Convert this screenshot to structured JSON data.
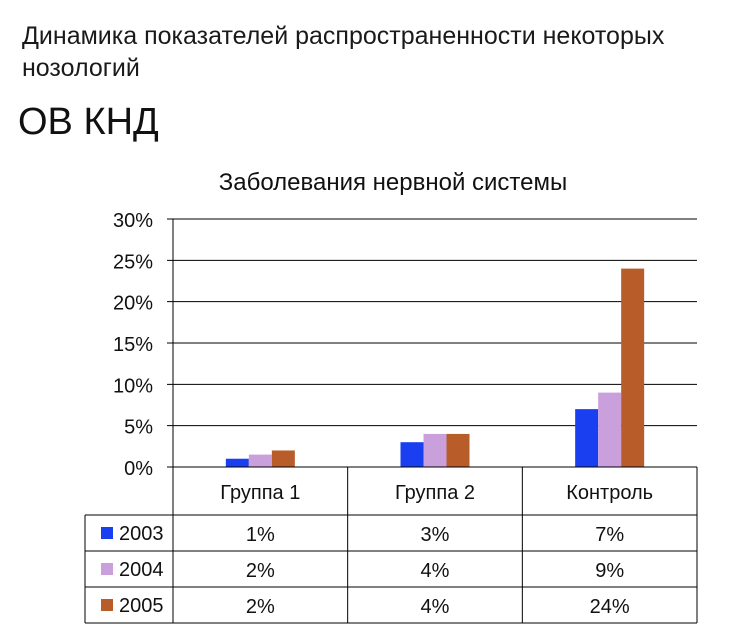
{
  "slide": {
    "heading": "Динамика показателей распространенности некоторых нозологий",
    "subheading": "ОВ КНД"
  },
  "chart_data": {
    "type": "bar",
    "title": "Заболевания нервной системы",
    "categories": [
      "Группа 1",
      "Группа 2",
      "Контроль"
    ],
    "series": [
      {
        "name": "2003",
        "color": "#1a3ff0",
        "values": [
          1,
          3,
          7
        ],
        "labels": [
          "1%",
          "3%",
          "7%"
        ]
      },
      {
        "name": "2004",
        "color": "#c9a0dc",
        "values": [
          1.5,
          4,
          9
        ],
        "labels": [
          "2%",
          "4%",
          "9%"
        ]
      },
      {
        "name": "2005",
        "color": "#b85c2a",
        "values": [
          2,
          4,
          24
        ],
        "labels": [
          "2%",
          "4%",
          "24%"
        ]
      }
    ],
    "ylim": [
      0,
      30
    ],
    "yticks": [
      "0%",
      "5%",
      "10%",
      "15%",
      "20%",
      "25%",
      "30%"
    ],
    "ytick_values": [
      0,
      5,
      10,
      15,
      20,
      25,
      30
    ],
    "grid": true,
    "legend": "data-table-left"
  }
}
